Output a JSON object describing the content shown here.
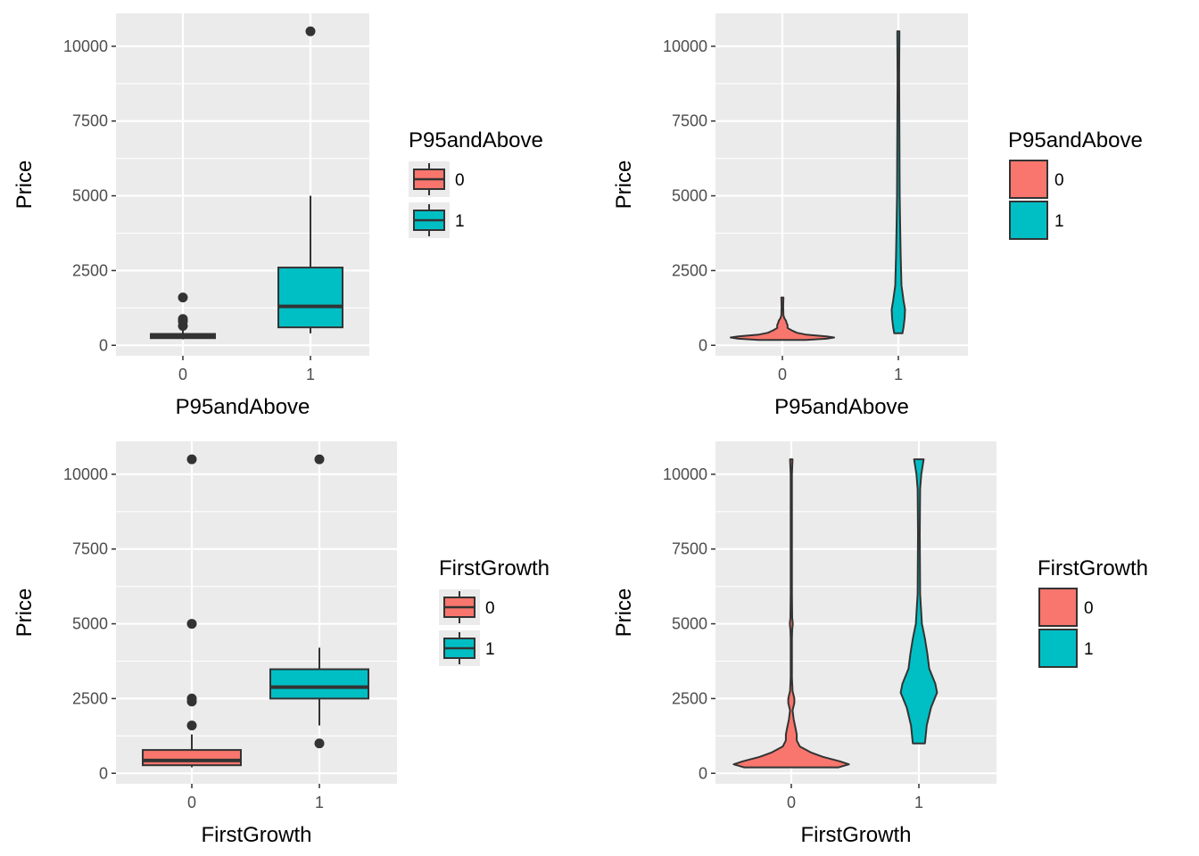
{
  "colors": {
    "0": "#F8766D",
    "1": "#00BFC4",
    "panel": "#EBEBEB",
    "grid": "#FFFFFF",
    "line": "#333333"
  },
  "chart_data": [
    {
      "type": "boxplot",
      "xlabel": "P95andAbove",
      "ylabel": "Price",
      "categories": [
        "0",
        "1"
      ],
      "ylim": [
        -350,
        11100
      ],
      "yticks": [
        0,
        2500,
        5000,
        7500,
        10000
      ],
      "legend": {
        "title": "P95andAbove",
        "entries": [
          "0",
          "1"
        ],
        "placement": "right"
      },
      "boxes": [
        {
          "category": "0",
          "lower_whisker": 200,
          "q1": 240,
          "median": 300,
          "q3": 380,
          "upper_whisker": 520,
          "outliers": [
            650,
            800,
            880,
            1600
          ]
        },
        {
          "category": "1",
          "lower_whisker": 400,
          "q1": 600,
          "median": 1300,
          "q3": 2600,
          "upper_whisker": 5000,
          "outliers": [
            10500
          ]
        }
      ]
    },
    {
      "type": "violin",
      "xlabel": "P95andAbove",
      "ylabel": "Price",
      "categories": [
        "0",
        "1"
      ],
      "ylim": [
        -350,
        11100
      ],
      "yticks": [
        0,
        2500,
        5000,
        7500,
        10000
      ],
      "legend": {
        "title": "P95andAbove",
        "entries": [
          "0",
          "1"
        ],
        "placement": "right"
      },
      "violins": [
        {
          "category": "0",
          "profile": [
            [
              180,
              0.45
            ],
            [
              220,
              0.85
            ],
            [
              260,
              1.0
            ],
            [
              300,
              0.85
            ],
            [
              360,
              0.45
            ],
            [
              420,
              0.28
            ],
            [
              500,
              0.18
            ],
            [
              580,
              0.1
            ],
            [
              680,
              0.1
            ],
            [
              760,
              0.08
            ],
            [
              820,
              0.07
            ],
            [
              900,
              0.04
            ],
            [
              1000,
              0.02
            ],
            [
              1300,
              0.015
            ],
            [
              1600,
              0.02
            ]
          ]
        },
        {
          "category": "1",
          "profile": [
            [
              400,
              0.08
            ],
            [
              600,
              0.1
            ],
            [
              900,
              0.12
            ],
            [
              1200,
              0.13
            ],
            [
              1500,
              0.1
            ],
            [
              2000,
              0.06
            ],
            [
              3000,
              0.045
            ],
            [
              4000,
              0.035
            ],
            [
              5000,
              0.025
            ],
            [
              7000,
              0.02
            ],
            [
              9000,
              0.015
            ],
            [
              10500,
              0.02
            ]
          ]
        }
      ]
    },
    {
      "type": "boxplot",
      "xlabel": "FirstGrowth",
      "ylabel": "Price",
      "categories": [
        "0",
        "1"
      ],
      "ylim": [
        -350,
        11100
      ],
      "yticks": [
        0,
        2500,
        5000,
        7500,
        10000
      ],
      "legend": {
        "title": "FirstGrowth",
        "entries": [
          "0",
          "1"
        ],
        "placement": "right"
      },
      "boxes": [
        {
          "category": "0",
          "lower_whisker": 200,
          "q1": 270,
          "median": 430,
          "q3": 780,
          "upper_whisker": 1300,
          "outliers": [
            1600,
            2400,
            2500,
            5000,
            10500
          ]
        },
        {
          "category": "1",
          "lower_whisker": 1600,
          "q1": 2500,
          "median": 2880,
          "q3": 3480,
          "upper_whisker": 4200,
          "outliers": [
            1000,
            10500
          ]
        }
      ]
    },
    {
      "type": "violin",
      "xlabel": "FirstGrowth",
      "ylabel": "Price",
      "categories": [
        "0",
        "1"
      ],
      "ylim": [
        -350,
        11100
      ],
      "yticks": [
        0,
        2500,
        5000,
        7500,
        10000
      ],
      "legend": {
        "title": "FirstGrowth",
        "entries": [
          "0",
          "1"
        ],
        "placement": "right"
      },
      "violins": [
        {
          "category": "0",
          "profile": [
            [
              200,
              0.78
            ],
            [
              300,
              0.95
            ],
            [
              400,
              0.8
            ],
            [
              550,
              0.52
            ],
            [
              700,
              0.32
            ],
            [
              900,
              0.14
            ],
            [
              1100,
              0.09
            ],
            [
              1300,
              0.09
            ],
            [
              1500,
              0.07
            ],
            [
              1800,
              0.04
            ],
            [
              2100,
              0.02
            ],
            [
              2350,
              0.05
            ],
            [
              2500,
              0.05
            ],
            [
              2750,
              0.02
            ],
            [
              3200,
              0.01
            ],
            [
              4500,
              0.01
            ],
            [
              4800,
              0.015
            ],
            [
              5000,
              0.025
            ],
            [
              5200,
              0.015
            ],
            [
              6000,
              0.01
            ],
            [
              8000,
              0.01
            ],
            [
              10000,
              0.01
            ],
            [
              10500,
              0.02
            ]
          ]
        },
        {
          "category": "1",
          "profile": [
            [
              1000,
              0.1
            ],
            [
              1600,
              0.13
            ],
            [
              2200,
              0.2
            ],
            [
              2700,
              0.3
            ],
            [
              3000,
              0.27
            ],
            [
              3500,
              0.17
            ],
            [
              4000,
              0.14
            ],
            [
              4500,
              0.1
            ],
            [
              5000,
              0.05
            ],
            [
              6000,
              0.02
            ],
            [
              8000,
              0.015
            ],
            [
              9500,
              0.02
            ],
            [
              10000,
              0.04
            ],
            [
              10500,
              0.08
            ]
          ]
        }
      ]
    }
  ]
}
